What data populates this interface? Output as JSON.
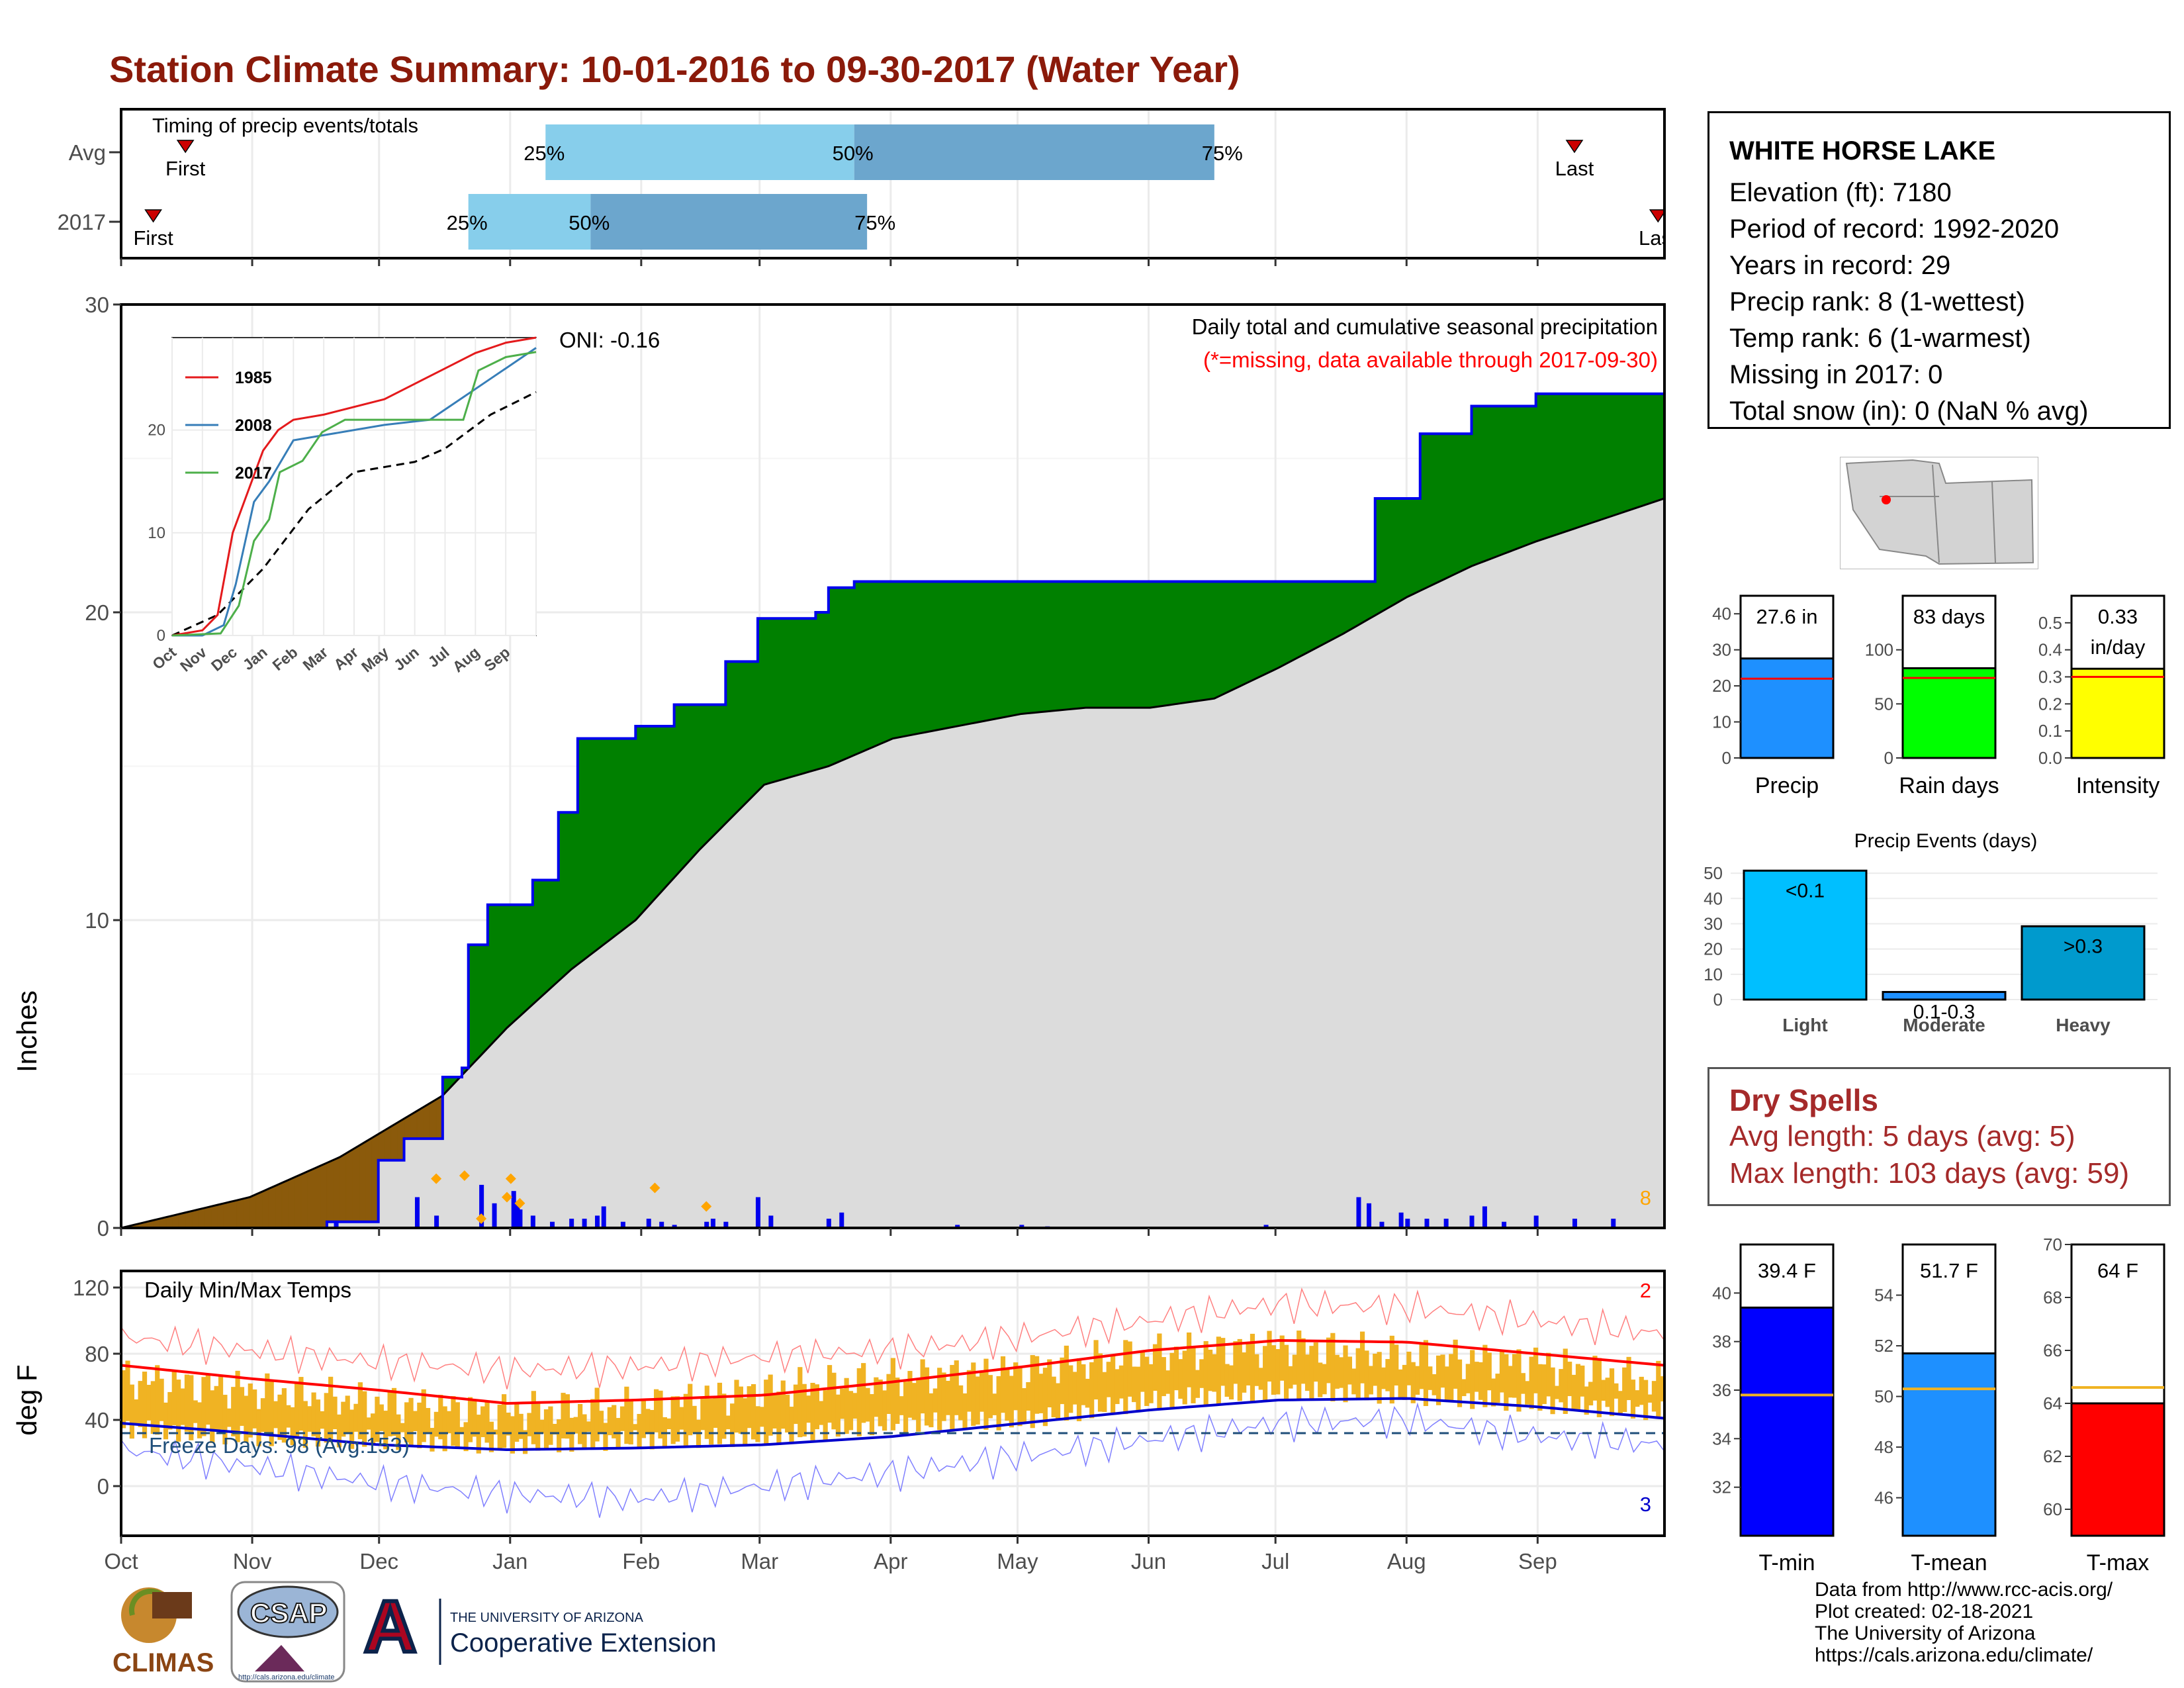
{
  "title": "Station Climate Summary: 10-01-2016 to 09-30-2017 (Water Year)",
  "timing": {
    "title": "Timing of precip events/totals",
    "rows": [
      {
        "label": "Avg",
        "first_label": "First",
        "last_label": "Last",
        "first": 0.5,
        "last": 11.3,
        "p25": 3.3,
        "p50": 5.7,
        "p75": 8.5
      },
      {
        "label": "2017",
        "first_label": "First",
        "last_label": "Last",
        "first": 0.25,
        "last": 11.95,
        "p25": 2.7,
        "p50": 3.65,
        "p75": 5.8
      }
    ],
    "p25_label": "25%",
    "p50_label": "50%",
    "p75_label": "75%",
    "colors": {
      "light": "#87CEEB",
      "dark": "#6CA6CD",
      "marker": "#CC0000"
    }
  },
  "station": {
    "name": "WHITE HORSE LAKE",
    "lines": [
      "Elevation (ft): 7180",
      "Period of record: 1992-2020",
      "Years in record: 29",
      "Precip rank: 8 (1-wettest)",
      "Temp rank: 6 (1-warmest)",
      "Missing in 2017: 0",
      "Total snow (in): 0 (NaN % avg)"
    ]
  },
  "months": [
    "Oct",
    "Nov",
    "Dec",
    "Jan",
    "Feb",
    "Mar",
    "Apr",
    "May",
    "Jun",
    "Jul",
    "Aug",
    "Sep"
  ],
  "precip": {
    "ylabel": "Inches",
    "note1": "Daily total and cumulative seasonal precipitation",
    "note2": "(*=missing, data available through 2017-09-30)",
    "oni": "ONI: -0.16",
    "count_label": "8",
    "ylim": [
      0,
      30
    ],
    "yticks": [
      "0",
      "10",
      "20",
      "30"
    ],
    "cumulative_2017": [
      [
        0,
        0
      ],
      [
        1.6,
        0
      ],
      [
        1.6,
        0.2
      ],
      [
        2.0,
        2.2
      ],
      [
        2.2,
        2.9
      ],
      [
        2.5,
        4.9
      ],
      [
        2.65,
        5.2
      ],
      [
        2.7,
        9.2
      ],
      [
        2.85,
        10.5
      ],
      [
        3.2,
        11.3
      ],
      [
        3.4,
        13.5
      ],
      [
        3.55,
        15.9
      ],
      [
        4.0,
        16.3
      ],
      [
        4.3,
        17.0
      ],
      [
        4.7,
        18.4
      ],
      [
        4.95,
        19.8
      ],
      [
        5.4,
        20.0
      ],
      [
        5.5,
        20.8
      ],
      [
        5.7,
        21.0
      ],
      [
        9.6,
        21.0
      ],
      [
        9.75,
        23.7
      ],
      [
        10.1,
        25.8
      ],
      [
        10.5,
        26.7
      ],
      [
        11.0,
        27.1
      ],
      [
        12.0,
        27.6
      ]
    ],
    "cumulative_avg": [
      [
        0,
        0
      ],
      [
        1.0,
        1.0
      ],
      [
        1.7,
        2.3
      ],
      [
        2.5,
        4.3
      ],
      [
        3.0,
        6.5
      ],
      [
        3.5,
        8.4
      ],
      [
        4.0,
        10.0
      ],
      [
        4.5,
        12.3
      ],
      [
        5.0,
        14.4
      ],
      [
        5.5,
        15.0
      ],
      [
        6.0,
        15.9
      ],
      [
        6.5,
        16.3
      ],
      [
        7.0,
        16.7
      ],
      [
        7.5,
        16.9
      ],
      [
        8.0,
        16.9
      ],
      [
        8.5,
        17.2
      ],
      [
        9.0,
        18.2
      ],
      [
        9.5,
        19.3
      ],
      [
        10.0,
        20.5
      ],
      [
        10.5,
        21.5
      ],
      [
        11.0,
        22.3
      ],
      [
        11.5,
        23.0
      ],
      [
        12.0,
        23.7
      ]
    ],
    "daily_bars": [
      [
        1.67,
        0.2
      ],
      [
        2.3,
        1.0
      ],
      [
        2.45,
        0.4
      ],
      [
        2.8,
        1.4
      ],
      [
        2.9,
        0.8
      ],
      [
        3.05,
        1.2
      ],
      [
        3.07,
        0.8
      ],
      [
        3.08,
        0.8
      ],
      [
        3.1,
        0.6
      ],
      [
        3.2,
        0.4
      ],
      [
        3.35,
        0.2
      ],
      [
        3.5,
        0.3
      ],
      [
        3.6,
        0.3
      ],
      [
        3.7,
        0.4
      ],
      [
        3.75,
        0.7
      ],
      [
        3.9,
        0.2
      ],
      [
        4.1,
        0.3
      ],
      [
        4.2,
        0.2
      ],
      [
        4.3,
        0.1
      ],
      [
        4.55,
        0.2
      ],
      [
        4.6,
        0.3
      ],
      [
        4.7,
        0.2
      ],
      [
        4.95,
        1.0
      ],
      [
        5.05,
        0.4
      ],
      [
        5.5,
        0.3
      ],
      [
        5.6,
        0.5
      ],
      [
        6.5,
        0.1
      ],
      [
        7.0,
        0.1
      ],
      [
        7.2,
        0.05
      ],
      [
        8.9,
        0.1
      ],
      [
        9.62,
        1.0
      ],
      [
        9.7,
        0.8
      ],
      [
        9.8,
        0.2
      ],
      [
        9.95,
        0.5
      ],
      [
        10.0,
        0.3
      ],
      [
        10.15,
        0.3
      ],
      [
        10.3,
        0.3
      ],
      [
        10.5,
        0.4
      ],
      [
        10.6,
        0.7
      ],
      [
        10.75,
        0.2
      ],
      [
        11.0,
        0.4
      ],
      [
        11.3,
        0.3
      ],
      [
        11.6,
        0.3
      ]
    ],
    "dots": [
      [
        2.45,
        1.6
      ],
      [
        2.67,
        1.7
      ],
      [
        2.8,
        0.3
      ],
      [
        3.0,
        1.0
      ],
      [
        3.03,
        1.6
      ],
      [
        3.1,
        0.8
      ],
      [
        4.15,
        1.3
      ],
      [
        4.55,
        0.7
      ]
    ],
    "colors": {
      "above": "#008000",
      "below": "#8B5A0B",
      "avg_fill": "#DCDCDC",
      "line": "#0000EE",
      "dot": "#FFA500"
    }
  },
  "inset": {
    "ylim": [
      0,
      29
    ],
    "yticks": [
      "0",
      "10",
      "20"
    ],
    "months": [
      "Oct",
      "Nov",
      "Dec",
      "Jan",
      "Feb",
      "Mar",
      "Apr",
      "May",
      "Jun",
      "Jul",
      "Aug",
      "Sep"
    ],
    "series": [
      {
        "name": "1985",
        "color": "#E41A1C",
        "values": [
          [
            0,
            0
          ],
          [
            1.0,
            0.5
          ],
          [
            1.5,
            2.0
          ],
          [
            2.0,
            10.0
          ],
          [
            2.5,
            14.0
          ],
          [
            3.0,
            18.0
          ],
          [
            3.5,
            20.0
          ],
          [
            4.0,
            21.0
          ],
          [
            5.0,
            21.5
          ],
          [
            7.0,
            23.0
          ],
          [
            8.0,
            24.5
          ],
          [
            9.0,
            26.0
          ],
          [
            10.0,
            27.5
          ],
          [
            11.0,
            28.5
          ],
          [
            12.0,
            29.0
          ]
        ]
      },
      {
        "name": "2008",
        "color": "#377EB8",
        "values": [
          [
            0,
            0
          ],
          [
            1.0,
            0.0
          ],
          [
            1.7,
            1.0
          ],
          [
            2.1,
            5.0
          ],
          [
            2.7,
            13.0
          ],
          [
            3.2,
            15.0
          ],
          [
            4.0,
            19.0
          ],
          [
            5.0,
            19.5
          ],
          [
            6.0,
            20.0
          ],
          [
            7.0,
            20.5
          ],
          [
            8.5,
            21.0
          ],
          [
            9.5,
            23.0
          ],
          [
            10.5,
            25.0
          ],
          [
            11.5,
            27.0
          ],
          [
            12.0,
            28.0
          ]
        ]
      },
      {
        "name": "2017",
        "color": "#4DAF4A",
        "values": [
          [
            0,
            0
          ],
          [
            1.6,
            0.2
          ],
          [
            2.2,
            2.9
          ],
          [
            2.7,
            9.2
          ],
          [
            3.2,
            11.3
          ],
          [
            3.55,
            15.9
          ],
          [
            4.3,
            17.0
          ],
          [
            4.95,
            19.8
          ],
          [
            5.7,
            21.0
          ],
          [
            9.6,
            21.0
          ],
          [
            10.1,
            25.8
          ],
          [
            11.0,
            27.1
          ],
          [
            12.0,
            27.6
          ]
        ]
      }
    ],
    "average": [
      [
        0,
        0
      ],
      [
        1.5,
        2.0
      ],
      [
        3.0,
        6.5
      ],
      [
        4.5,
        12.3
      ],
      [
        6.0,
        15.9
      ],
      [
        8.0,
        16.9
      ],
      [
        9.0,
        18.2
      ],
      [
        10.5,
        21.5
      ],
      [
        12.0,
        23.7
      ]
    ]
  },
  "temps": {
    "title": "Daily Min/Max Temps",
    "ylabel": "deg F",
    "ylim": [
      -30,
      130
    ],
    "yticks": [
      "0",
      "40",
      "80",
      "120"
    ],
    "freeze_label": "Freeze Days: 98 (Avg:153)",
    "freeze_line": 32,
    "count_hi": "2",
    "count_lo": "3",
    "avg_max": [
      [
        0,
        73
      ],
      [
        1,
        65
      ],
      [
        2,
        58
      ],
      [
        3,
        50
      ],
      [
        4,
        52
      ],
      [
        5,
        55
      ],
      [
        6,
        63
      ],
      [
        7,
        72
      ],
      [
        8,
        82
      ],
      [
        9,
        88
      ],
      [
        10,
        87
      ],
      [
        11,
        80
      ],
      [
        12,
        73
      ]
    ],
    "avg_min": [
      [
        0,
        38
      ],
      [
        1,
        32
      ],
      [
        2,
        25
      ],
      [
        3,
        22
      ],
      [
        4,
        23
      ],
      [
        5,
        25
      ],
      [
        6,
        30
      ],
      [
        7,
        38
      ],
      [
        8,
        46
      ],
      [
        9,
        52
      ],
      [
        10,
        53
      ],
      [
        11,
        48
      ],
      [
        12,
        41
      ]
    ],
    "rec_max": [
      [
        0,
        90
      ],
      [
        1,
        82
      ],
      [
        2,
        75
      ],
      [
        3,
        70
      ],
      [
        4,
        72
      ],
      [
        5,
        78
      ],
      [
        6,
        82
      ],
      [
        7,
        90
      ],
      [
        8,
        100
      ],
      [
        9,
        110
      ],
      [
        10,
        108
      ],
      [
        11,
        100
      ],
      [
        12,
        92
      ]
    ],
    "rec_min": [
      [
        0,
        22
      ],
      [
        1,
        12
      ],
      [
        2,
        2
      ],
      [
        3,
        -5
      ],
      [
        4,
        -8
      ],
      [
        5,
        0
      ],
      [
        6,
        8
      ],
      [
        7,
        18
      ],
      [
        8,
        28
      ],
      [
        9,
        38
      ],
      [
        10,
        40
      ],
      [
        11,
        30
      ],
      [
        12,
        25
      ]
    ],
    "obs_high": [
      [
        0,
        65
      ],
      [
        1,
        58
      ],
      [
        2,
        50
      ],
      [
        3,
        45
      ],
      [
        4,
        48
      ],
      [
        5,
        58
      ],
      [
        6,
        65
      ],
      [
        7,
        70
      ],
      [
        8,
        80
      ],
      [
        9,
        85
      ],
      [
        10,
        78
      ],
      [
        11,
        75
      ],
      [
        12,
        62
      ]
    ],
    "obs_low": [
      [
        0,
        35
      ],
      [
        1,
        30
      ],
      [
        2,
        28
      ],
      [
        3,
        25
      ],
      [
        4,
        28
      ],
      [
        5,
        30
      ],
      [
        6,
        38
      ],
      [
        7,
        40
      ],
      [
        8,
        52
      ],
      [
        9,
        58
      ],
      [
        10,
        55
      ],
      [
        11,
        50
      ],
      [
        12,
        45
      ]
    ],
    "colors": {
      "obs": "#F0B323",
      "avg_max": "#FF0000",
      "avg_min": "#0000CC",
      "rec_max": "#FF8080",
      "rec_min": "#8080FF",
      "freeze": "#1F4E79"
    }
  },
  "mini_bars": [
    {
      "name": "Precip",
      "value_label": "27.6 in",
      "value": 27.6,
      "avg": 22.0,
      "ylim": [
        0,
        45
      ],
      "yticks": [
        "0",
        "10",
        "20",
        "30",
        "40"
      ],
      "tick_values": [
        0,
        10,
        20,
        30,
        40
      ],
      "color": "#1E90FF"
    },
    {
      "name": "Rain days",
      "value_label": "83 days",
      "value": 83,
      "avg": 74,
      "ylim": [
        0,
        150
      ],
      "yticks": [
        "0",
        "50",
        "100"
      ],
      "tick_values": [
        0,
        50,
        100
      ],
      "color": "#00FF00"
    },
    {
      "name": "Intensity",
      "value_label": "0.33\nin/day",
      "value": 0.33,
      "avg": 0.3,
      "ylim": [
        0,
        0.6
      ],
      "yticks": [
        "0.0",
        "0.1",
        "0.2",
        "0.3",
        "0.4",
        "0.5"
      ],
      "tick_values": [
        0,
        0.1,
        0.2,
        0.3,
        0.4,
        0.5
      ],
      "color": "#FFFF00"
    }
  ],
  "events": {
    "title": "Precip Events (days)",
    "categories": [
      "Light",
      "Moderate",
      "Heavy"
    ],
    "values": [
      51,
      3,
      29
    ],
    "labels": [
      "<0.1",
      "0.1-0.3",
      ">0.3"
    ],
    "yticks": [
      "0",
      "10",
      "20",
      "30",
      "40",
      "50"
    ],
    "colors": [
      "#00BFFF",
      "#1E90FF",
      "#009ACD"
    ]
  },
  "dry_spells": {
    "title": "Dry Spells",
    "avg_length": "Avg length: 5 days (avg: 5)",
    "max_length": "Max length: 103 days (avg: 59)"
  },
  "temp_bars": [
    {
      "name": "T-min",
      "value_label": "39.4 F",
      "value": 39.4,
      "avg": 35.8,
      "ylim": [
        30,
        42
      ],
      "tick_values": [
        32,
        34,
        36,
        38,
        40
      ],
      "yticks": [
        "32",
        "34",
        "36",
        "38",
        "40"
      ],
      "color": "#0000FF"
    },
    {
      "name": "T-mean",
      "value_label": "51.7 F",
      "value": 51.7,
      "avg": 50.3,
      "ylim": [
        44.5,
        56
      ],
      "tick_values": [
        46,
        48,
        50,
        52,
        54
      ],
      "yticks": [
        "46",
        "48",
        "50",
        "52",
        "54"
      ],
      "color": "#1E90FF"
    },
    {
      "name": "T-max",
      "value_label": "64 F",
      "value": 64,
      "avg": 64.6,
      "ylim": [
        59,
        70
      ],
      "tick_values": [
        60,
        62,
        64,
        66,
        68,
        70
      ],
      "yticks": [
        "60",
        "62",
        "64",
        "66",
        "68",
        "70"
      ],
      "color": "#FF0000"
    }
  ],
  "logos": {
    "climas": "CLIMAS",
    "csap": "CSAP",
    "csap_url": "http://cals.arizona.edu/climate",
    "ua_small": "THE UNIVERSITY OF ARIZONA",
    "ua_big": "Cooperative Extension"
  },
  "credits": [
    "Data from http://www.rcc-acis.org/",
    "Plot created: 02-18-2021",
    "The University of Arizona",
    "https://cals.arizona.edu/climate/"
  ]
}
